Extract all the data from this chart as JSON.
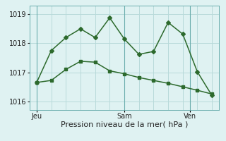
{
  "line1_x": [
    0,
    1,
    2,
    3,
    4,
    5,
    6,
    7,
    8,
    9,
    10,
    11,
    12
  ],
  "line1_y": [
    1016.65,
    1016.72,
    1017.1,
    1017.38,
    1017.35,
    1017.05,
    1016.95,
    1016.82,
    1016.72,
    1016.62,
    1016.5,
    1016.38,
    1016.25
  ],
  "line2_x": [
    0,
    1,
    2,
    3,
    4,
    5,
    6,
    7,
    8,
    9,
    10,
    11,
    12
  ],
  "line2_y": [
    1016.65,
    1017.75,
    1018.2,
    1018.5,
    1018.2,
    1018.88,
    1018.15,
    1017.62,
    1017.72,
    1018.72,
    1018.32,
    1017.02,
    1016.2
  ],
  "line_color": "#2d6a2d",
  "bg_color": "#dff2f2",
  "grid_color": "#b8dada",
  "vline_color": "#6aadad",
  "ylim": [
    1015.7,
    1019.3
  ],
  "yticks": [
    1016,
    1017,
    1018,
    1019
  ],
  "xlabel": "Pression niveau de la mer( hPa )",
  "xtick_labels_pos": [
    0,
    6,
    10.5
  ],
  "xtick_labels_text": [
    "Jeu",
    "Sam",
    "Ven"
  ],
  "vline_positions": [
    0,
    6,
    10.5
  ],
  "xlabel_fontsize": 8,
  "tick_fontsize": 7,
  "line_width": 1.1,
  "marker_size": 3
}
